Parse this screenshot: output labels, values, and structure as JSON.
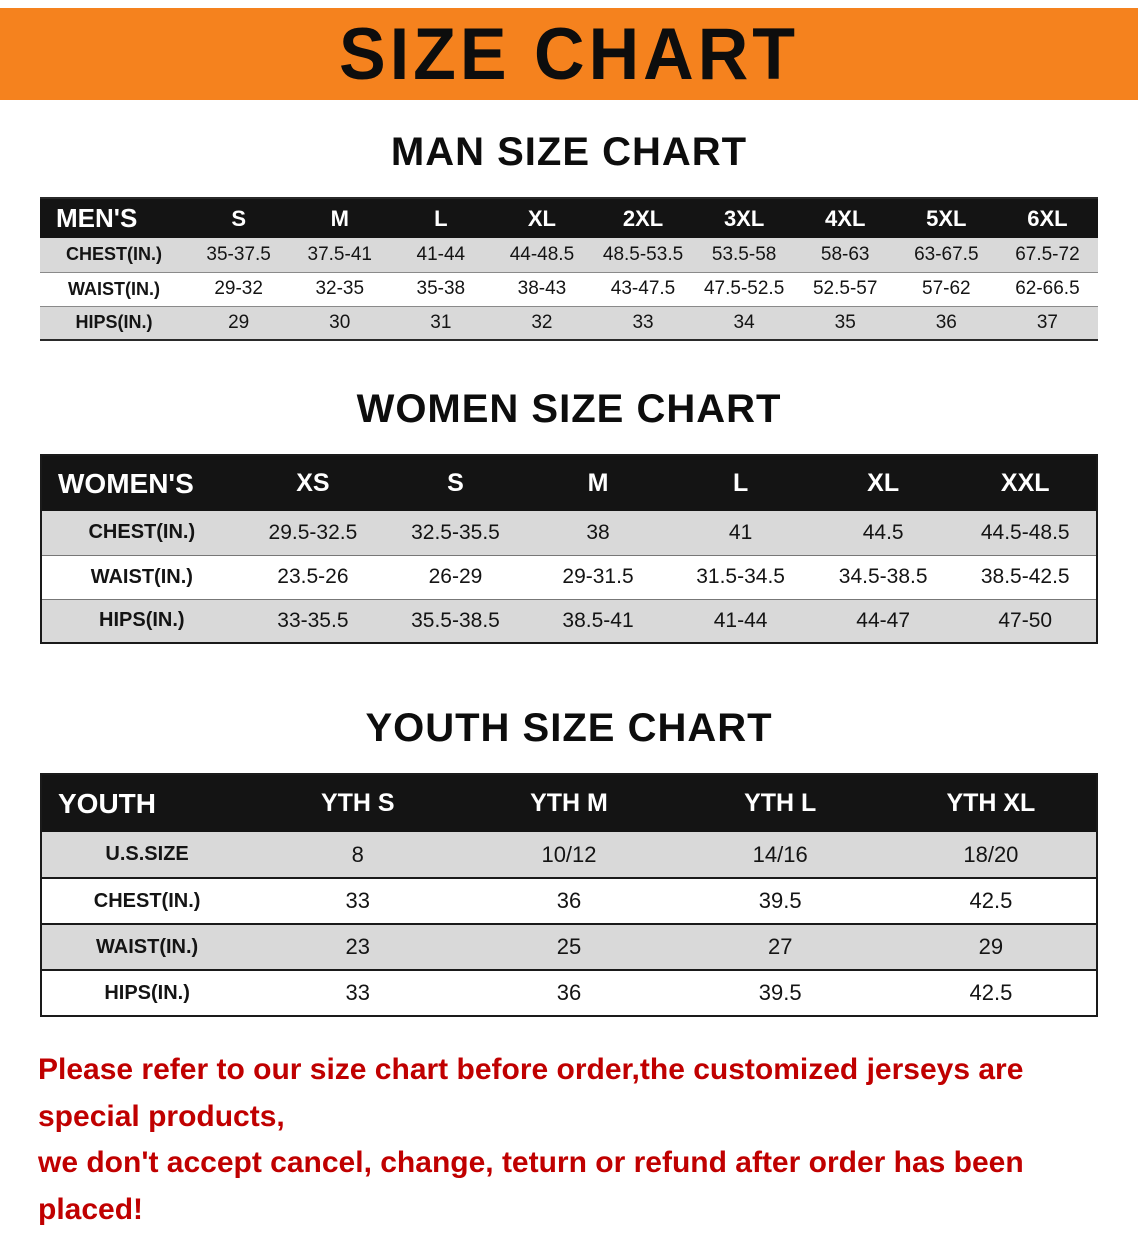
{
  "banner": {
    "title": "SIZE CHART",
    "bg_color": "#F5821E"
  },
  "sections": [
    {
      "heading": "MAN SIZE CHART",
      "table": {
        "header": [
          "MEN'S",
          "S",
          "M",
          "L",
          "XL",
          "2XL",
          "3XL",
          "4XL",
          "5XL",
          "6XL"
        ],
        "rows": [
          [
            "CHEST(IN.)",
            "35-37.5",
            "37.5-41",
            "41-44",
            "44-48.5",
            "48.5-53.5",
            "53.5-58",
            "58-63",
            "63-67.5",
            "67.5-72"
          ],
          [
            "WAIST(IN.)",
            "29-32",
            "32-35",
            "35-38",
            "38-43",
            "43-47.5",
            "47.5-52.5",
            "52.5-57",
            "57-62",
            "62-66.5"
          ],
          [
            "HIPS(IN.)",
            "29",
            "30",
            "31",
            "32",
            "33",
            "34",
            "35",
            "36",
            "37"
          ]
        ]
      }
    },
    {
      "heading": "WOMEN SIZE CHART",
      "table": {
        "header": [
          "WOMEN'S",
          "XS",
          "S",
          "M",
          "L",
          "XL",
          "XXL"
        ],
        "rows": [
          [
            "CHEST(IN.)",
            "29.5-32.5",
            "32.5-35.5",
            "38",
            "41",
            "44.5",
            "44.5-48.5"
          ],
          [
            "WAIST(IN.)",
            "23.5-26",
            "26-29",
            "29-31.5",
            "31.5-34.5",
            "34.5-38.5",
            "38.5-42.5"
          ],
          [
            "HIPS(IN.)",
            "33-35.5",
            "35.5-38.5",
            "38.5-41",
            "41-44",
            "44-47",
            "47-50"
          ]
        ]
      }
    },
    {
      "heading": "YOUTH SIZE CHART",
      "table": {
        "header": [
          "YOUTH",
          "YTH S",
          "YTH M",
          "YTH L",
          "YTH XL"
        ],
        "rows": [
          [
            "U.S.SIZE",
            "8",
            "10/12",
            "14/16",
            "18/20"
          ],
          [
            "CHEST(IN.)",
            "33",
            "36",
            "39.5",
            "42.5"
          ],
          [
            "WAIST(IN.)",
            "23",
            "25",
            "27",
            "29"
          ],
          [
            "HIPS(IN.)",
            "33",
            "36",
            "39.5",
            "42.5"
          ]
        ]
      }
    }
  ],
  "disclaimer": {
    "line1": "Please refer to our size chart before order,the customized jerseys are special products,",
    "line2": "we don't accept cancel, change, teturn or refund after order has been placed!",
    "color": "#C00000"
  }
}
